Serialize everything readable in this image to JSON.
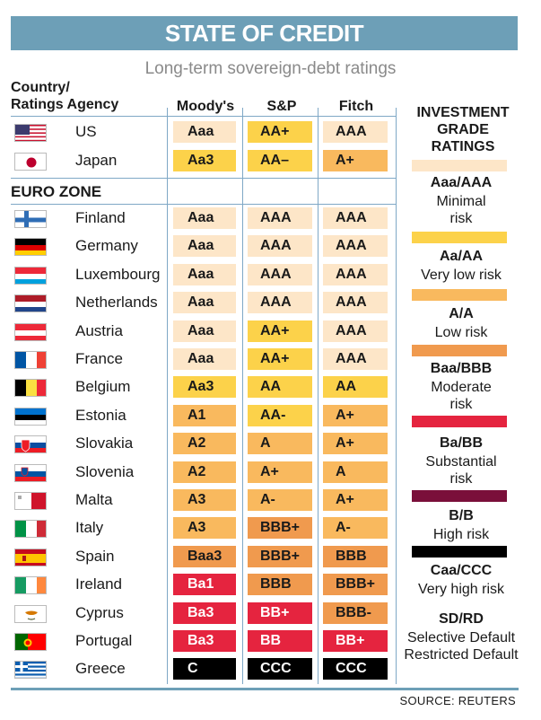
{
  "title": "STATE OF CREDIT",
  "subtitle": "Long-term sovereign-debt ratings",
  "header_country_line1": "Country/",
  "header_country_line2": "Ratings Agency",
  "columns": [
    "Moody's",
    "S&P",
    "Fitch"
  ],
  "section_label": "EURO ZONE",
  "source": "SOURCE: REUTERS",
  "colors": {
    "aaa": "#fde6c8",
    "aa": "#fcd24a",
    "a": "#f9b95e",
    "baa": "#f09a4e",
    "ba": "#e5243f",
    "b": "#7a0f3a",
    "caa": "#000000",
    "accent": "#6d9fb7"
  },
  "countries": [
    {
      "name": "US",
      "flag": "us-flag-icon",
      "ratings": [
        "Aaa",
        "AA+",
        "AAA"
      ],
      "tiers": [
        "aaa",
        "aa",
        "aaa"
      ]
    },
    {
      "name": "Japan",
      "flag": "japan-flag-icon",
      "ratings": [
        "Aa3",
        "AA–",
        "A+"
      ],
      "tiers": [
        "aa",
        "aa",
        "a"
      ]
    }
  ],
  "euro_zone": [
    {
      "name": "Finland",
      "flag": "finland-flag-icon",
      "ratings": [
        "Aaa",
        "AAA",
        "AAA"
      ],
      "tiers": [
        "aaa",
        "aaa",
        "aaa"
      ]
    },
    {
      "name": "Germany",
      "flag": "germany-flag-icon",
      "ratings": [
        "Aaa",
        "AAA",
        "AAA"
      ],
      "tiers": [
        "aaa",
        "aaa",
        "aaa"
      ]
    },
    {
      "name": "Luxembourg",
      "flag": "luxembourg-flag-icon",
      "ratings": [
        "Aaa",
        "AAA",
        "AAA"
      ],
      "tiers": [
        "aaa",
        "aaa",
        "aaa"
      ]
    },
    {
      "name": "Netherlands",
      "flag": "netherlands-flag-icon",
      "ratings": [
        "Aaa",
        "AAA",
        "AAA"
      ],
      "tiers": [
        "aaa",
        "aaa",
        "aaa"
      ]
    },
    {
      "name": "Austria",
      "flag": "austria-flag-icon",
      "ratings": [
        "Aaa",
        "AA+",
        "AAA"
      ],
      "tiers": [
        "aaa",
        "aa",
        "aaa"
      ]
    },
    {
      "name": "France",
      "flag": "france-flag-icon",
      "ratings": [
        "Aaa",
        "AA+",
        "AAA"
      ],
      "tiers": [
        "aaa",
        "aa",
        "aaa"
      ]
    },
    {
      "name": "Belgium",
      "flag": "belgium-flag-icon",
      "ratings": [
        "Aa3",
        "AA",
        "AA"
      ],
      "tiers": [
        "aa",
        "aa",
        "aa"
      ]
    },
    {
      "name": "Estonia",
      "flag": "estonia-flag-icon",
      "ratings": [
        "A1",
        "AA-",
        "A+"
      ],
      "tiers": [
        "a",
        "aa",
        "a"
      ]
    },
    {
      "name": "Slovakia",
      "flag": "slovakia-flag-icon",
      "ratings": [
        "A2",
        "A",
        "A+"
      ],
      "tiers": [
        "a",
        "a",
        "a"
      ]
    },
    {
      "name": "Slovenia",
      "flag": "slovenia-flag-icon",
      "ratings": [
        "A2",
        "A+",
        "A"
      ],
      "tiers": [
        "a",
        "a",
        "a"
      ]
    },
    {
      "name": "Malta",
      "flag": "malta-flag-icon",
      "ratings": [
        "A3",
        "A-",
        "A+"
      ],
      "tiers": [
        "a",
        "a",
        "a"
      ]
    },
    {
      "name": "Italy",
      "flag": "italy-flag-icon",
      "ratings": [
        "A3",
        "BBB+",
        "A-"
      ],
      "tiers": [
        "a",
        "baa",
        "a"
      ]
    },
    {
      "name": "Spain",
      "flag": "spain-flag-icon",
      "ratings": [
        "Baa3",
        "BBB+",
        "BBB"
      ],
      "tiers": [
        "baa",
        "baa",
        "baa"
      ]
    },
    {
      "name": "Ireland",
      "flag": "ireland-flag-icon",
      "ratings": [
        "Ba1",
        "BBB",
        "BBB+"
      ],
      "tiers": [
        "ba",
        "baa",
        "baa"
      ]
    },
    {
      "name": "Cyprus",
      "flag": "cyprus-flag-icon",
      "ratings": [
        "Ba3",
        "BB+",
        "BBB-"
      ],
      "tiers": [
        "ba",
        "ba",
        "baa"
      ]
    },
    {
      "name": "Portugal",
      "flag": "portugal-flag-icon",
      "ratings": [
        "Ba3",
        "BB",
        "BB+"
      ],
      "tiers": [
        "ba",
        "ba",
        "ba"
      ]
    },
    {
      "name": "Greece",
      "flag": "greece-flag-icon",
      "ratings": [
        "C",
        "CCC",
        "CCC"
      ],
      "tiers": [
        "caa",
        "caa",
        "caa"
      ]
    }
  ],
  "legend": {
    "title_line1": "INVESTMENT",
    "title_line2": "GRADE",
    "title_line3": "RATINGS",
    "items": [
      {
        "code": "Aaa/AAA",
        "desc1": "Minimal",
        "desc2": "risk",
        "tier": "aaa"
      },
      {
        "code": "Aa/AA",
        "desc1": "Very low risk",
        "desc2": "",
        "tier": "aa"
      },
      {
        "code": "A/A",
        "desc1": "Low risk",
        "desc2": "",
        "tier": "a"
      },
      {
        "code": "Baa/BBB",
        "desc1": "Moderate",
        "desc2": "risk",
        "tier": "baa"
      },
      {
        "code": "Ba/BB",
        "desc1": "Substantial",
        "desc2": "risk",
        "tier": "ba"
      },
      {
        "code": "B/B",
        "desc1": "High risk",
        "desc2": "",
        "tier": "b"
      },
      {
        "code": "Caa/CCC",
        "desc1": "Very high risk",
        "desc2": "",
        "tier": "caa"
      },
      {
        "code": "SD/RD",
        "desc1": "Selective Default",
        "desc2": "Restricted Default",
        "tier": ""
      }
    ]
  }
}
